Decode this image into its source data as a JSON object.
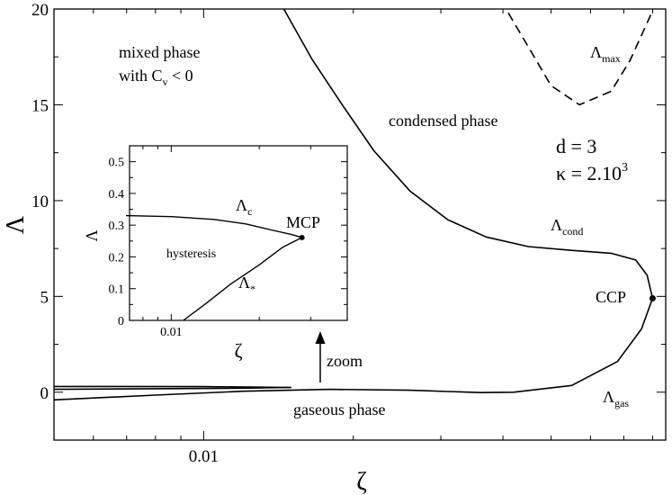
{
  "chart_data": [
    {
      "type": "line",
      "role": "main",
      "xlabel": "ζ",
      "ylabel": "Λ",
      "xscale": "log",
      "ylim": [
        -2.5,
        20
      ],
      "y_ticks": [
        "0",
        "5",
        "10",
        "15",
        "20"
      ],
      "y_tick_values": [
        0,
        5,
        10,
        15,
        20
      ],
      "x_ticks": [
        "0.01"
      ],
      "x_tick_values": [
        0.01
      ],
      "series": [
        {
          "name": "Λ_max",
          "style": "dashed",
          "points": [
            [
              0.041,
              19.8
            ],
            [
              0.046,
              17.6
            ],
            [
              0.05,
              16.0
            ],
            [
              0.057,
              15.0
            ],
            [
              0.066,
              15.7
            ],
            [
              0.072,
              17.3
            ],
            [
              0.08,
              19.9
            ]
          ]
        },
        {
          "name": "Λ_cond",
          "style": "solid",
          "points": [
            [
              0.0145,
              20.0
            ],
            [
              0.0165,
              17.4
            ],
            [
              0.019,
              15.0
            ],
            [
              0.022,
              12.6
            ],
            [
              0.026,
              10.5
            ],
            [
              0.031,
              9.0
            ],
            [
              0.037,
              8.1
            ],
            [
              0.045,
              7.6
            ],
            [
              0.055,
              7.4
            ],
            [
              0.066,
              7.25
            ],
            [
              0.074,
              6.9
            ],
            [
              0.078,
              6.1
            ],
            [
              0.08,
              4.9
            ]
          ]
        },
        {
          "name": "Λ_gas",
          "style": "solid",
          "points": [
            [
              0.005,
              -0.4
            ],
            [
              0.008,
              -0.15
            ],
            [
              0.012,
              0.05
            ],
            [
              0.018,
              0.15
            ],
            [
              0.026,
              0.1
            ],
            [
              0.036,
              -0.02
            ],
            [
              0.042,
              0.0
            ],
            [
              0.055,
              0.35
            ],
            [
              0.068,
              1.6
            ],
            [
              0.076,
              3.3
            ],
            [
              0.08,
              4.9
            ]
          ]
        },
        {
          "name": "Λ_c",
          "style": "solid",
          "points": [
            [
              0.005,
              0.3
            ],
            [
              0.01,
              0.29
            ],
            [
              0.015,
              0.25
            ]
          ]
        },
        {
          "name": "Λ_*",
          "style": "solid",
          "points": [
            [
              0.005,
              0.15
            ],
            [
              0.012,
              0.21
            ],
            [
              0.015,
              0.25
            ]
          ]
        }
      ],
      "points": [
        {
          "label": "CCP",
          "x": 0.08,
          "y": 4.9
        }
      ],
      "annotations": {
        "mixed_line1": "mixed phase",
        "mixed_line2": "with C",
        "mixed_sub": "v",
        "mixed_tail": " < 0",
        "condensed": "condensed phase",
        "gaseous": "gaseous phase",
        "d": "d = 3",
        "kappa_base": "κ = 2.10",
        "kappa_exp": "3",
        "zoom": "zoom",
        "ccp": "CCP",
        "lam": "Λ",
        "lam_max_sub": "max",
        "lam_cond_sub": "cond",
        "lam_gas_sub": "gas"
      }
    },
    {
      "type": "line",
      "role": "inset",
      "xlabel": "ζ",
      "ylabel": "Λ",
      "xscale": "log",
      "ylim": [
        0,
        0.55
      ],
      "y_ticks": [
        "0",
        "0.1",
        "0.2",
        "0.3",
        "0.4",
        "0.5"
      ],
      "y_tick_values": [
        0,
        0.1,
        0.2,
        0.3,
        0.4,
        0.5
      ],
      "x_ticks": [
        "0.01"
      ],
      "x_tick_values": [
        0.01
      ],
      "series": [
        {
          "name": "Λ_c",
          "style": "solid",
          "points": [
            [
              0.007,
              0.33
            ],
            [
              0.01,
              0.327
            ],
            [
              0.014,
              0.318
            ],
            [
              0.018,
              0.304
            ],
            [
              0.022,
              0.285
            ],
            [
              0.026,
              0.27
            ],
            [
              0.028,
              0.261
            ]
          ]
        },
        {
          "name": "Λ_*",
          "style": "solid",
          "points": [
            [
              0.011,
              0.0
            ],
            [
              0.013,
              0.05
            ],
            [
              0.016,
              0.115
            ],
            [
              0.02,
              0.175
            ],
            [
              0.024,
              0.23
            ],
            [
              0.028,
              0.261
            ]
          ]
        }
      ],
      "points": [
        {
          "label": "MCP",
          "x": 0.028,
          "y": 0.261
        }
      ],
      "annotations": {
        "hysteresis": "hysteresis",
        "mcp": "MCP",
        "lam": "Λ",
        "lam_c_sub": "c",
        "lam_star_sub": "*"
      }
    }
  ]
}
